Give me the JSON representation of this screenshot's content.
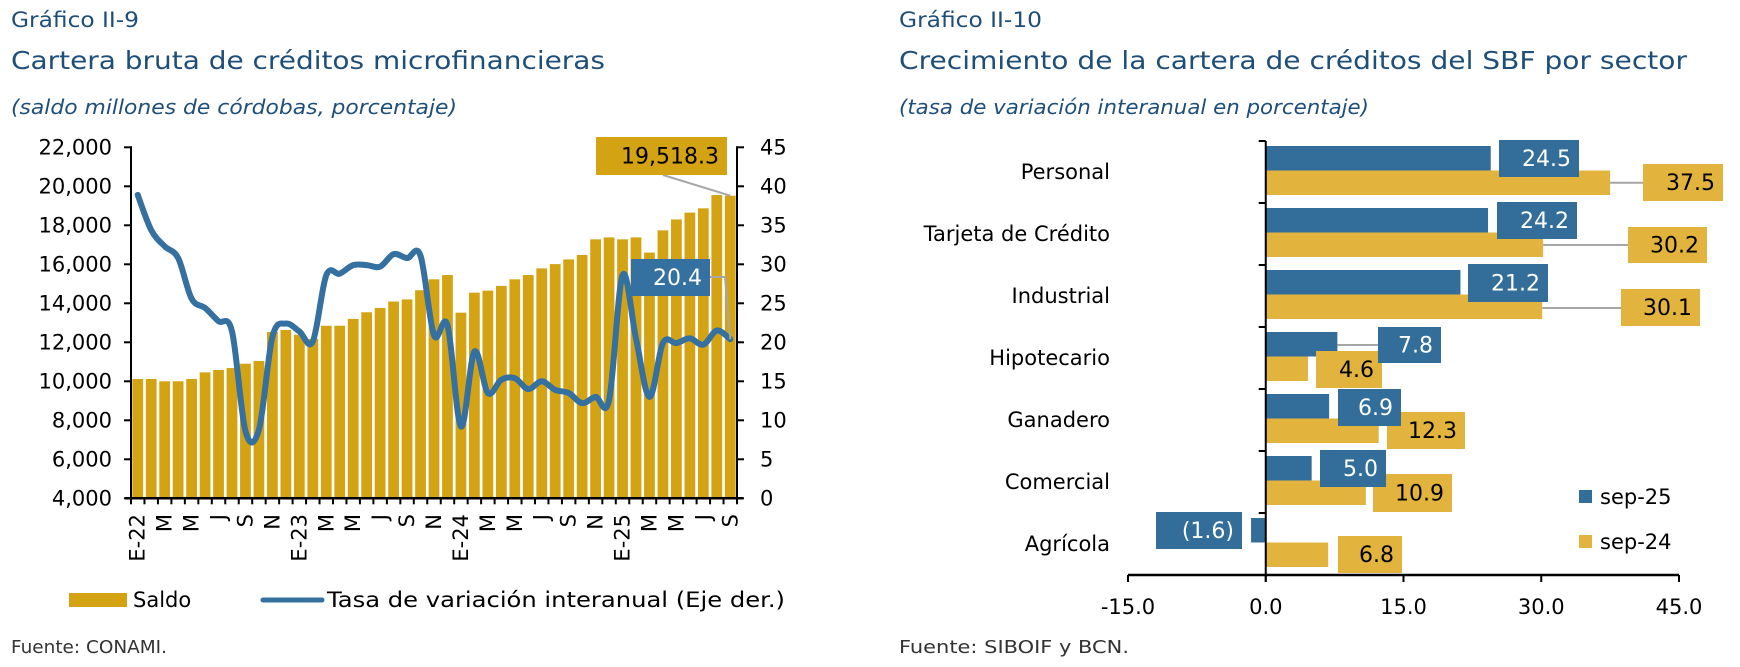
{
  "panels": [
    {
      "figure_number": "Gráfico II-9",
      "title": "Cartera bruta de créditos microfinancieras",
      "subtitle": "(saldo millones de córdobas, porcentaje)",
      "source": "Fuente: CONAMI."
    },
    {
      "figure_number": "Gráfico II-10",
      "title": "Crecimiento de la cartera de créditos del SBF por sector",
      "subtitle": "(tasa de variación interanual en porcentaje)",
      "source": "Fuente: SIBOIF y BCN."
    }
  ],
  "chart_data": [
    {
      "type": "bar",
      "title": "Cartera bruta de créditos microfinancieras",
      "subtitle": "(saldo millones de córdobas, porcentaje)",
      "xlabel": "",
      "ylabel": "",
      "y2label": "",
      "grid": false,
      "categories": [
        "E-22",
        "",
        "M",
        "",
        "M",
        "",
        "J",
        "",
        "S",
        "",
        "N",
        "",
        "E-23",
        "",
        "M",
        "",
        "M",
        "",
        "J",
        "",
        "S",
        "",
        "N",
        "",
        "E-24",
        "",
        "M",
        "",
        "M",
        "",
        "J",
        "",
        "S",
        "",
        "N",
        "",
        "E-25",
        "",
        "M",
        "",
        "M",
        "",
        "J",
        "",
        "S"
      ],
      "series": [
        {
          "name": "Saldo",
          "type": "bar",
          "axis": "left",
          "color": "#D4A313",
          "values": [
            10120,
            10120,
            10000,
            10000,
            10120,
            10460,
            10580,
            10680,
            10900,
            11040,
            12530,
            12630,
            12390,
            12170,
            12850,
            12850,
            13200,
            13540,
            13760,
            14090,
            14200,
            14670,
            15230,
            15450,
            13520,
            14545,
            14650,
            14890,
            15230,
            15450,
            15790,
            16010,
            16250,
            16480,
            17280,
            17380,
            17280,
            17380,
            16600,
            17740,
            18300,
            18650,
            18870,
            19550,
            19518.3
          ]
        },
        {
          "name": "Tasa de variación interanual (Eje der.)",
          "type": "line",
          "axis": "right",
          "color": "#3470A0",
          "values": [
            38.9,
            34.4,
            32.3,
            30.8,
            25.6,
            24.4,
            22.7,
            21.4,
            8.6,
            8.8,
            20.7,
            22.4,
            21.4,
            20.1,
            28.6,
            28.8,
            29.9,
            29.9,
            29.7,
            31.3,
            30.8,
            31.1,
            20.9,
            22.2,
            9.2,
            18.8,
            13.5,
            15.2,
            15.4,
            14.0,
            15.0,
            13.9,
            13.5,
            12.2,
            13.0,
            12.6,
            28.6,
            20.5,
            13.0,
            19.9,
            19.9,
            20.5,
            19.7,
            21.5,
            20.4
          ]
        }
      ],
      "ylim": [
        4000,
        22000
      ],
      "y_tick_values": [
        4000,
        6000,
        8000,
        10000,
        12000,
        14000,
        16000,
        18000,
        20000,
        22000
      ],
      "y_tick_labels": [
        "4,000",
        "6,000",
        "8,000",
        "10,000",
        "12,000",
        "14,000",
        "16,000",
        "18,000",
        "20,000",
        "22,000"
      ],
      "y2lim": [
        0,
        45
      ],
      "y2_tick_values": [
        0,
        5,
        10,
        15,
        20,
        25,
        30,
        35,
        40,
        45
      ],
      "y2_tick_labels": [
        "0",
        "5",
        "10",
        "15",
        "20",
        "25",
        "30",
        "35",
        "40",
        "45"
      ],
      "data_labels": [
        {
          "series": "Saldo",
          "index": 44,
          "text": "19,518.3"
        },
        {
          "series": "Tasa de variación interanual (Eje der.)",
          "index": 44,
          "text": "20.4"
        }
      ],
      "legend": {
        "position": "bottom",
        "items": [
          "Saldo",
          "Tasa de variación interanual (Eje der.)"
        ]
      }
    },
    {
      "type": "bar",
      "orientation": "horizontal",
      "title": "Crecimiento de la cartera de créditos del SBF por sector",
      "subtitle": "(tasa de variación interanual en porcentaje)",
      "xlabel": "",
      "ylabel": "",
      "grid": false,
      "categories": [
        "Personal",
        "Tarjeta de Crédito",
        "Industrial",
        "Hipotecario",
        "Ganadero",
        "Comercial",
        "Agrícola"
      ],
      "series": [
        {
          "name": "sep-25",
          "color": "#336E9B",
          "values": [
            24.5,
            24.2,
            21.2,
            7.8,
            6.9,
            5.0,
            -1.6
          ],
          "labels": [
            "24.5",
            "24.2",
            "21.2",
            "7.8",
            "6.9",
            "5.0",
            "(1.6)"
          ]
        },
        {
          "name": "sep-24",
          "color": "#E2B43E",
          "values": [
            37.5,
            30.2,
            30.1,
            4.6,
            12.3,
            10.9,
            6.8
          ],
          "labels": [
            "37.5",
            "30.2",
            "30.1",
            "4.6",
            "12.3",
            "10.9",
            "6.8"
          ]
        }
      ],
      "xlim": [
        -15,
        45
      ],
      "x_tick_values": [
        -15,
        0,
        15,
        30,
        45
      ],
      "x_tick_labels": [
        "-15.0",
        "0.0",
        "15.0",
        "30.0",
        "45.0"
      ],
      "legend": {
        "position": "bottom-right",
        "items": [
          "sep-25",
          "sep-24"
        ]
      }
    }
  ]
}
